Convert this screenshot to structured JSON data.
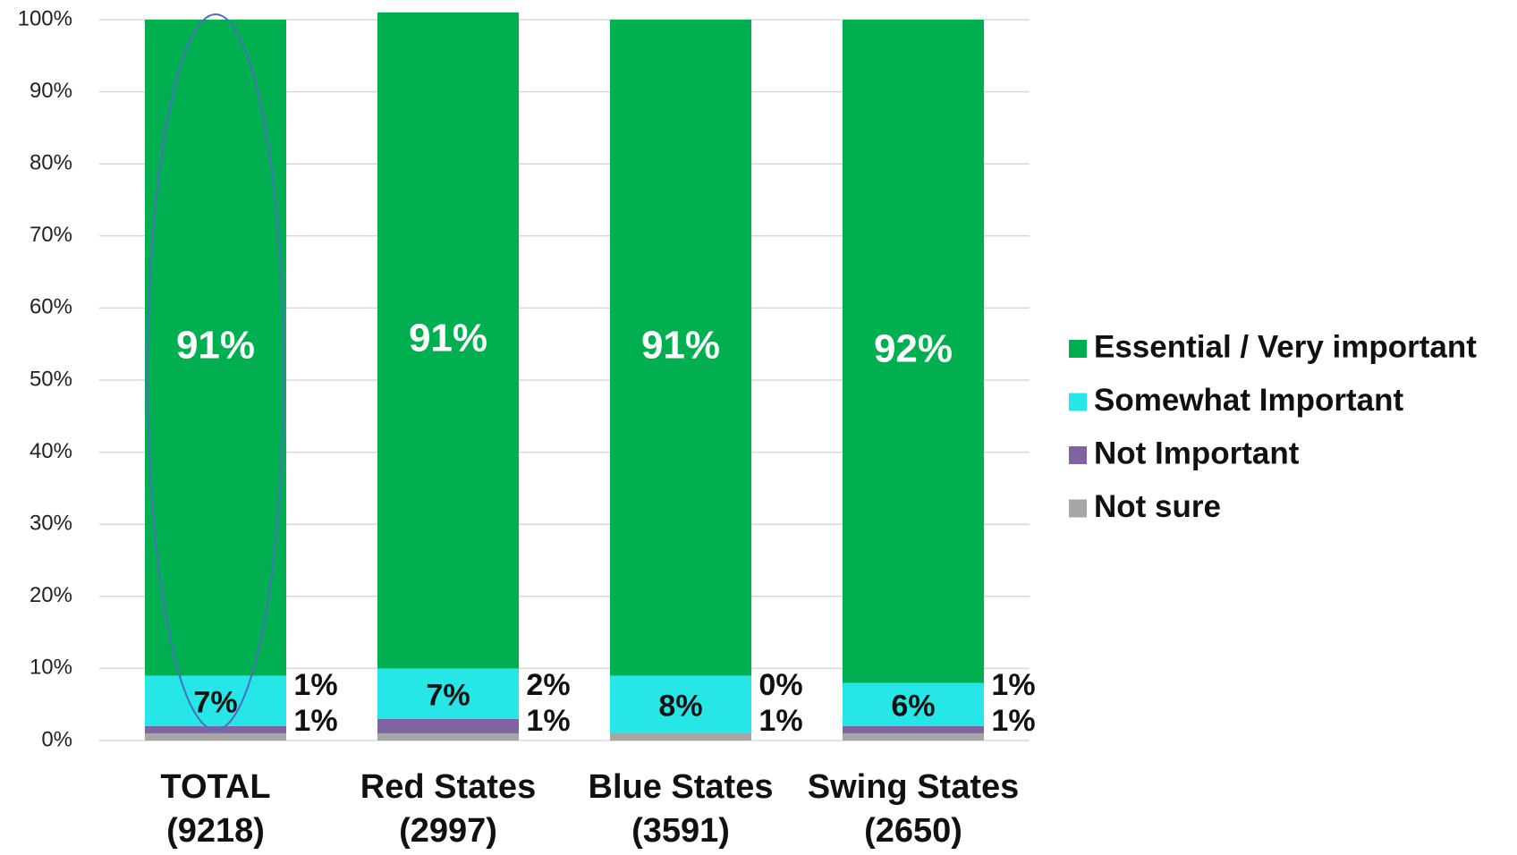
{
  "chart_data": {
    "type": "stacked-bar",
    "categories": [
      [
        "TOTAL",
        "(9218)"
      ],
      [
        "Red States",
        "(2997)"
      ],
      [
        "Blue States",
        "(3591)"
      ],
      [
        "Swing States",
        "(2650)"
      ]
    ],
    "series": [
      {
        "name": "Not sure",
        "color": "#a6a6a6",
        "values": [
          1,
          1,
          1,
          1
        ],
        "value_labels": [
          "1%",
          "1%",
          "1%",
          "1%"
        ]
      },
      {
        "name": "Not Important",
        "color": "#8064a2",
        "values": [
          1,
          2,
          0,
          1
        ],
        "value_labels": [
          "1%",
          "2%",
          "0%",
          "1%"
        ]
      },
      {
        "name": "Somewhat Important",
        "color": "#27e6e8",
        "values": [
          7,
          7,
          8,
          6
        ],
        "value_labels": [
          "7%",
          "7%",
          "8%",
          "6%"
        ]
      },
      {
        "name": "Essential / Very important",
        "color": "#00b050",
        "values": [
          91,
          91,
          91,
          92
        ],
        "value_labels": [
          "91%",
          "91%",
          "91%",
          "92%"
        ]
      }
    ],
    "ylim": [
      0,
      100
    ],
    "yticks": [
      {
        "value": 0,
        "label": "0%"
      },
      {
        "value": 10,
        "label": "10%"
      },
      {
        "value": 20,
        "label": "20%"
      },
      {
        "value": 30,
        "label": "30%"
      },
      {
        "value": 40,
        "label": "40%"
      },
      {
        "value": 50,
        "label": "50%"
      },
      {
        "value": 60,
        "label": "60%"
      },
      {
        "value": 70,
        "label": "70%"
      },
      {
        "value": 80,
        "label": "80%"
      },
      {
        "value": 90,
        "label": "90%"
      },
      {
        "value": 100,
        "label": "100%"
      }
    ],
    "grid": true,
    "legend": "right"
  }
}
